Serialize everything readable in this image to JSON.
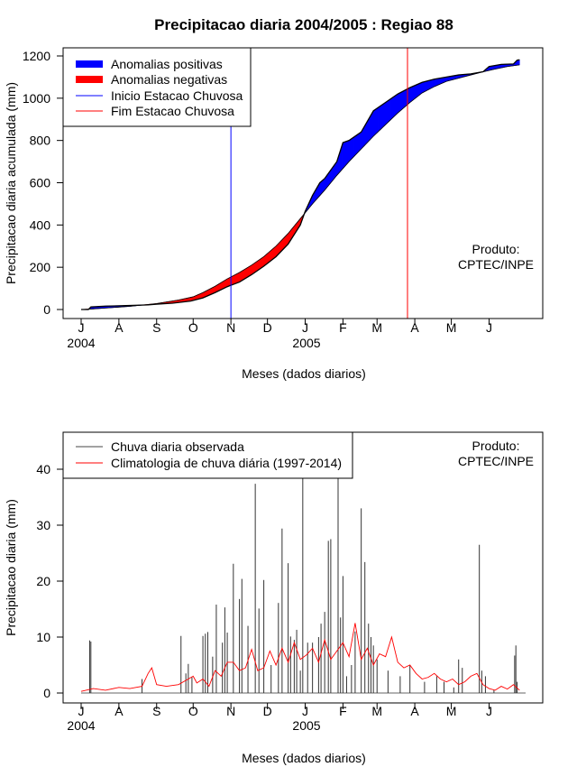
{
  "title": "Precipitacao diaria 2004/2005 : Regiao 88",
  "colors": {
    "positive": "#0000ff",
    "negative": "#ff0000",
    "observed_line": "#000000",
    "inicio_line": "#0000ff",
    "fim_line": "#ff0000",
    "clim_line": "#ff0000",
    "daily_bar": "#333333"
  },
  "chart_data": [
    {
      "type": "area",
      "title": "Precipitacao diaria 2004/2005 : Regiao 88",
      "xlabel": "Meses (dados diarios)",
      "ylabel": "Precipitacao diaria acumulada (mm)",
      "x_units": "days since 2004-07-01",
      "xlim": [
        0,
        365
      ],
      "ylim": [
        0,
        1200
      ],
      "yticks": [
        0,
        200,
        400,
        600,
        800,
        1000,
        1200
      ],
      "month_ticks": {
        "days": [
          0,
          31,
          62,
          92,
          123,
          153,
          184,
          215,
          243,
          274,
          304,
          335
        ],
        "labels": [
          "J",
          "A",
          "S",
          "O",
          "N",
          "D",
          "J",
          "F",
          "M",
          "A",
          "M",
          "J"
        ]
      },
      "year_labels": [
        {
          "day": 0,
          "label": "2004"
        },
        {
          "day": 184,
          "label": "2005"
        }
      ],
      "legend": [
        "Anomalias positivas",
        "Anomalias negativas",
        "Inicio Estacao Chuvosa",
        "Fim Estacao Chuvosa"
      ],
      "inicio_estacao_day": 123,
      "fim_estacao_day": 268,
      "series": [
        {
          "name": "Observada acumulada",
          "x": [
            0,
            6,
            8,
            20,
            40,
            55,
            62,
            75,
            90,
            100,
            110,
            120,
            130,
            140,
            150,
            160,
            170,
            180,
            184,
            190,
            196,
            200,
            210,
            215,
            220,
            230,
            235,
            240,
            250,
            260,
            270,
            280,
            290,
            300,
            310,
            320,
            330,
            335,
            345,
            355,
            358,
            360
          ],
          "values": [
            0,
            0,
            12,
            16,
            19,
            22,
            25,
            30,
            40,
            55,
            80,
            108,
            130,
            165,
            205,
            250,
            310,
            400,
            465,
            540,
            600,
            620,
            700,
            790,
            800,
            840,
            890,
            940,
            980,
            1020,
            1050,
            1075,
            1090,
            1100,
            1110,
            1115,
            1125,
            1150,
            1160,
            1162,
            1180,
            1182
          ]
        },
        {
          "name": "Climatologia acumulada",
          "x": [
            0,
            10,
            20,
            40,
            62,
            80,
            92,
            100,
            110,
            120,
            130,
            140,
            150,
            160,
            170,
            180,
            190,
            200,
            210,
            220,
            230,
            240,
            250,
            260,
            270,
            280,
            290,
            300,
            310,
            320,
            330,
            340,
            350,
            360
          ],
          "values": [
            0,
            3,
            7,
            15,
            28,
            45,
            60,
            80,
            110,
            145,
            175,
            210,
            250,
            300,
            360,
            430,
            500,
            565,
            635,
            700,
            760,
            820,
            875,
            930,
            980,
            1025,
            1055,
            1080,
            1095,
            1110,
            1125,
            1138,
            1150,
            1158
          ]
        }
      ]
    },
    {
      "type": "bar",
      "title": "",
      "xlabel": "Meses (dados diarios)",
      "ylabel": "Precipitacao diaria (mm)",
      "x_units": "days since 2004-07-01",
      "xlim": [
        0,
        365
      ],
      "ylim": [
        0,
        45
      ],
      "yticks": [
        0,
        10,
        20,
        30,
        40
      ],
      "month_ticks": {
        "days": [
          0,
          31,
          62,
          92,
          123,
          153,
          184,
          215,
          243,
          274,
          304,
          335
        ],
        "labels": [
          "J",
          "A",
          "S",
          "O",
          "N",
          "D",
          "J",
          "F",
          "M",
          "A",
          "M",
          "J"
        ]
      },
      "year_labels": [
        {
          "day": 0,
          "label": "2004"
        },
        {
          "day": 184,
          "label": "2005"
        }
      ],
      "legend": [
        "Chuva diaria observada",
        "Climatologia de chuva diária (1997-2014)"
      ],
      "daily_observed": {
        "x": [
          7,
          8,
          50,
          82,
          86,
          88,
          91,
          100,
          102,
          104,
          108,
          111,
          116,
          118,
          120,
          125,
          130,
          132,
          137,
          143,
          146,
          150,
          156,
          162,
          165,
          170,
          172,
          175,
          177,
          180,
          182,
          186,
          190,
          195,
          197,
          200,
          203,
          205,
          211,
          213,
          215,
          218,
          222,
          225,
          230,
          233,
          236,
          238,
          240,
          243,
          252,
          262,
          270,
          282,
          292,
          298,
          306,
          310,
          313,
          327,
          329,
          332,
          339,
          356,
          357,
          358
        ],
        "values": [
          9.4,
          9.2,
          2.5,
          10.2,
          3.5,
          5.2,
          2.8,
          10.2,
          10.6,
          10.9,
          6.5,
          15.8,
          9.0,
          15.3,
          10.8,
          23.1,
          16.8,
          20.4,
          12.0,
          37.4,
          15.1,
          20.2,
          5.0,
          16.1,
          29.4,
          23.2,
          10.1,
          9.5,
          11.3,
          4.0,
          39.0,
          9.0,
          9.0,
          10.0,
          12.4,
          14.5,
          27.2,
          27.5,
          38.4,
          13.5,
          20.9,
          3.0,
          5.0,
          11.0,
          33.0,
          23.4,
          12.4,
          10.0,
          8.5,
          6.0,
          4.0,
          3.0,
          5.0,
          2.0,
          3.0,
          2.0,
          1.0,
          6.0,
          4.5,
          26.5,
          4.0,
          3.0,
          0.5,
          6.7,
          8.5,
          2.0
        ]
      },
      "climatology": {
        "x": [
          0,
          10,
          20,
          31,
          40,
          50,
          55,
          58,
          62,
          70,
          80,
          92,
          95,
          100,
          105,
          110,
          115,
          120,
          125,
          130,
          135,
          140,
          145,
          150,
          155,
          160,
          165,
          170,
          175,
          180,
          185,
          190,
          195,
          200,
          205,
          210,
          215,
          220,
          225,
          230,
          235,
          240,
          245,
          250,
          255,
          260,
          265,
          270,
          275,
          280,
          285,
          290,
          295,
          300,
          305,
          310,
          315,
          320,
          325,
          330,
          335,
          340,
          345,
          350,
          355,
          360
        ],
        "values": [
          0.3,
          0.8,
          0.5,
          1.0,
          0.8,
          1.2,
          3.5,
          4.5,
          1.5,
          1.2,
          1.5,
          3.0,
          1.8,
          2.5,
          1.2,
          4.0,
          3.0,
          5.5,
          5.5,
          4.0,
          4.5,
          7.8,
          4.0,
          4.5,
          7.5,
          5.0,
          8.0,
          5.5,
          9.0,
          6.0,
          6.8,
          8.0,
          5.5,
          9.5,
          6.0,
          7.5,
          9.0,
          6.5,
          12.5,
          6.0,
          8.0,
          5.0,
          7.0,
          6.5,
          10.0,
          5.5,
          4.5,
          5.0,
          3.5,
          2.5,
          2.8,
          3.5,
          2.5,
          2.0,
          2.5,
          1.5,
          2.0,
          3.0,
          3.5,
          1.5,
          0.8,
          0.5,
          1.2,
          0.7,
          1.5,
          0.5
        ]
      }
    }
  ],
  "top": {
    "ylabel": "Precipitacao diaria acumulada (mm)",
    "xlabel": "Meses (dados diarios)",
    "legend_1": "Anomalias positivas",
    "legend_2": "Anomalias negativas",
    "legend_3": "Inicio Estacao Chuvosa",
    "legend_4": "Fim Estacao Chuvosa",
    "produto_1": "Produto:",
    "produto_2": "CPTEC/INPE",
    "year_1": "2004",
    "year_2": "2005"
  },
  "bottom": {
    "ylabel": "Precipitacao diaria (mm)",
    "xlabel": "Meses (dados diarios)",
    "legend_1": "Chuva diaria observada",
    "legend_2": "Climatologia de chuva diária (1997-2014)",
    "produto_1": "Produto:",
    "produto_2": "CPTEC/INPE",
    "year_1": "2004",
    "year_2": "2005"
  }
}
